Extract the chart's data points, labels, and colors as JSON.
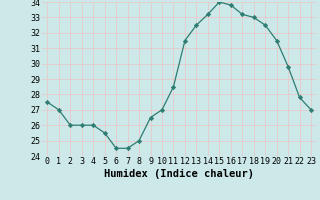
{
  "x": [
    0,
    1,
    2,
    3,
    4,
    5,
    6,
    7,
    8,
    9,
    10,
    11,
    12,
    13,
    14,
    15,
    16,
    17,
    18,
    19,
    20,
    21,
    22,
    23
  ],
  "y": [
    27.5,
    27.0,
    26.0,
    26.0,
    26.0,
    25.5,
    24.5,
    24.5,
    25.0,
    26.5,
    27.0,
    28.5,
    31.5,
    32.5,
    33.2,
    34.0,
    33.8,
    33.2,
    33.0,
    32.5,
    31.5,
    29.8,
    27.8,
    27.0
  ],
  "xlabel": "Humidex (Indice chaleur)",
  "ylim": [
    24,
    34
  ],
  "xlim": [
    -0.5,
    23.5
  ],
  "yticks": [
    24,
    25,
    26,
    27,
    28,
    29,
    30,
    31,
    32,
    33,
    34
  ],
  "xticks": [
    0,
    1,
    2,
    3,
    4,
    5,
    6,
    7,
    8,
    9,
    10,
    11,
    12,
    13,
    14,
    15,
    16,
    17,
    18,
    19,
    20,
    21,
    22,
    23
  ],
  "line_color": "#2e7d72",
  "marker": "D",
  "marker_size": 2.2,
  "bg_color": "#cce8e8",
  "grid_color": "#b8d8d8",
  "tick_fontsize": 6,
  "xlabel_fontsize": 7.5
}
